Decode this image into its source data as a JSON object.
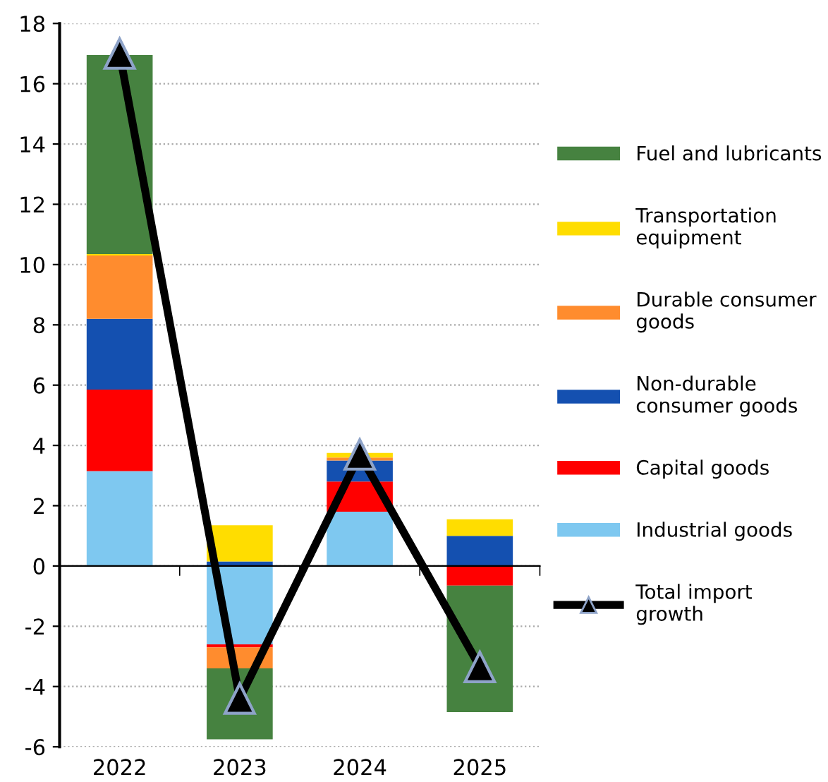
{
  "chart_data": {
    "type": "bar",
    "stacked": true,
    "categories": [
      "2022",
      "2023",
      "2024",
      "2025"
    ],
    "series": [
      {
        "name": "Industrial goods",
        "color": "#7ec8f0",
        "values": [
          3.15,
          -2.6,
          1.8,
          0
        ]
      },
      {
        "name": "Capital goods",
        "color": "#ff0000",
        "values": [
          2.7,
          -0.1,
          1.0,
          -0.65
        ]
      },
      {
        "name": "Non-durable\nconsumer goods",
        "color": "#1450b0",
        "values": [
          2.35,
          0.15,
          0.7,
          1.0
        ]
      },
      {
        "name": "Durable consumer\ngoods",
        "color": "#ff8c2e",
        "values": [
          2.1,
          -0.7,
          0.1,
          0
        ]
      },
      {
        "name": "Transportation\nequipment",
        "color": "#ffdd00",
        "values": [
          0.05,
          1.2,
          0.15,
          0.55
        ]
      },
      {
        "name": "Fuel and lubricants",
        "color": "#468240",
        "values": [
          6.6,
          -2.35,
          0,
          -4.2
        ]
      },
      {
        "name": "Total import\ngrowth",
        "type": "line",
        "color": "#000000",
        "marker": "triangle",
        "values": [
          17.0,
          -4.4,
          3.7,
          -3.35
        ]
      }
    ],
    "ylim": [
      -6,
      18
    ],
    "yticks": [
      -6,
      -4,
      -2,
      0,
      2,
      4,
      6,
      8,
      10,
      12,
      14,
      16,
      18
    ],
    "grid": "y",
    "legend": "right"
  }
}
